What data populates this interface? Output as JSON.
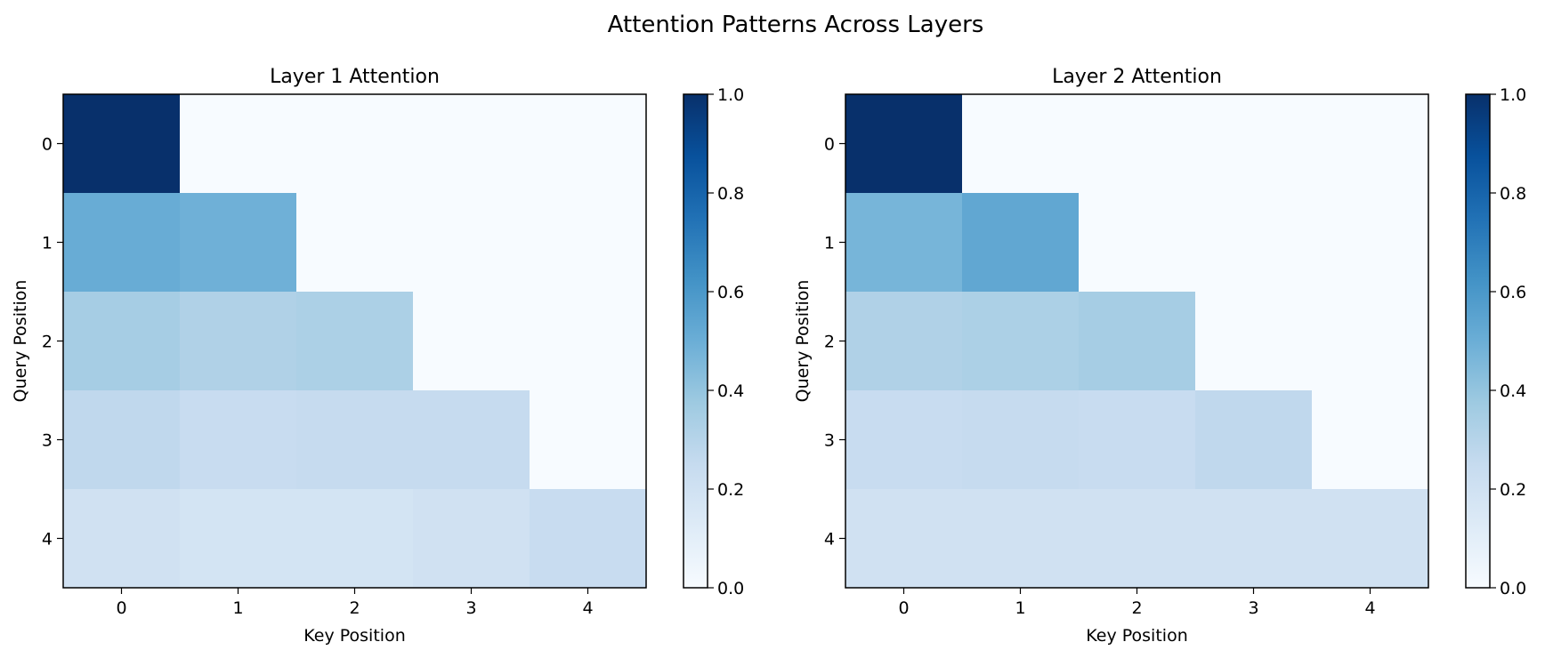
{
  "figure": {
    "title": "Attention Patterns Across Layers"
  },
  "colormap": {
    "name": "Blues",
    "low_color": "#f7fbff",
    "high_color": "#08306b"
  },
  "chart_data": [
    {
      "type": "heatmap",
      "title": "Layer 1 Attention",
      "xlabel": "Key Position",
      "ylabel": "Query Position",
      "x_ticks": [
        "0",
        "1",
        "2",
        "3",
        "4"
      ],
      "y_ticks": [
        "0",
        "1",
        "2",
        "3",
        "4"
      ],
      "values": [
        [
          1.0,
          0.0,
          0.0,
          0.0,
          0.0
        ],
        [
          0.51,
          0.49,
          0.0,
          0.0,
          0.0
        ],
        [
          0.35,
          0.32,
          0.33,
          0.0,
          0.0
        ],
        [
          0.27,
          0.24,
          0.25,
          0.25,
          0.0
        ],
        [
          0.2,
          0.18,
          0.18,
          0.2,
          0.24
        ]
      ],
      "colorbar": {
        "range": [
          0.0,
          1.0
        ],
        "ticks": [
          "0.0",
          "0.2",
          "0.4",
          "0.6",
          "0.8",
          "1.0"
        ]
      },
      "grid": false
    },
    {
      "type": "heatmap",
      "title": "Layer 2 Attention",
      "xlabel": "Key Position",
      "ylabel": "Query Position",
      "x_ticks": [
        "0",
        "1",
        "2",
        "3",
        "4"
      ],
      "y_ticks": [
        "0",
        "1",
        "2",
        "3",
        "4"
      ],
      "values": [
        [
          1.0,
          0.0,
          0.0,
          0.0,
          0.0
        ],
        [
          0.47,
          0.53,
          0.0,
          0.0,
          0.0
        ],
        [
          0.32,
          0.33,
          0.35,
          0.0,
          0.0
        ],
        [
          0.24,
          0.25,
          0.24,
          0.27,
          0.0
        ],
        [
          0.2,
          0.2,
          0.2,
          0.2,
          0.2
        ]
      ],
      "colorbar": {
        "range": [
          0.0,
          1.0
        ],
        "ticks": [
          "0.0",
          "0.2",
          "0.4",
          "0.6",
          "0.8",
          "1.0"
        ]
      },
      "grid": false
    }
  ]
}
